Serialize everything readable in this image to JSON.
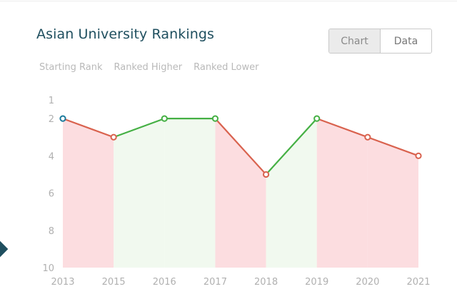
{
  "header": {
    "title": "Asian University Rankings"
  },
  "toggle": {
    "chart_label": "Chart",
    "data_label": "Data"
  },
  "legend": {
    "items": [
      "Starting Rank",
      "Ranked Higher",
      "Ranked Lower"
    ]
  },
  "colors": {
    "lower_line": "#d9624e",
    "higher_line": "#45b044",
    "lower_fill": "#fcdde0",
    "higher_fill": "#f1f9ef",
    "start_marker": "#1b7a9c"
  },
  "chart_data": {
    "type": "line",
    "title": "Asian University Rankings",
    "xlabel": "",
    "ylabel": "",
    "x": [
      "2013",
      "2015",
      "2016",
      "2017",
      "2018",
      "2019",
      "2020",
      "2021"
    ],
    "series": [
      {
        "values": [
          2,
          3,
          2,
          2,
          5,
          2,
          3,
          4
        ]
      }
    ],
    "yticks": [
      1,
      2,
      4,
      6,
      8,
      10
    ],
    "ylim": [
      1,
      10
    ],
    "y_inverted": true,
    "grid": false,
    "legend_position": "top-left"
  }
}
